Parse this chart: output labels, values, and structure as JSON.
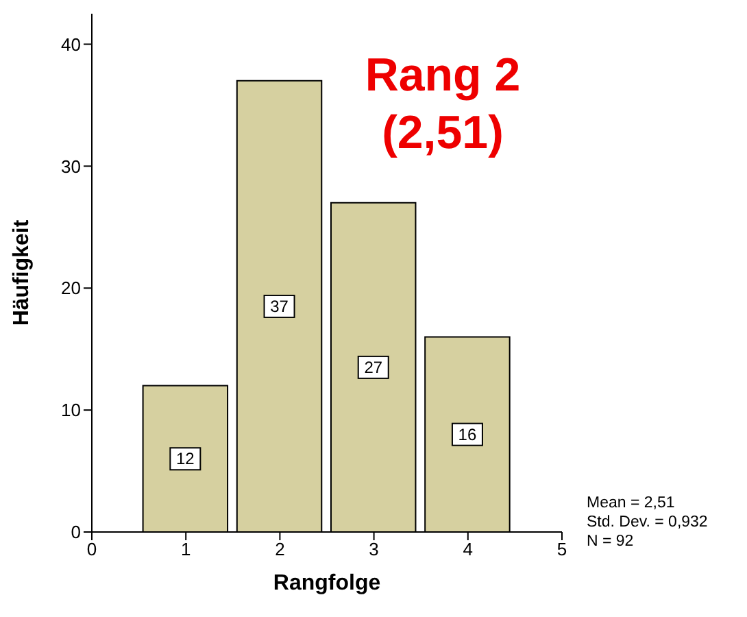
{
  "chart_data": {
    "type": "histogram",
    "xlabel": "Rangfolge",
    "ylabel": "Häufigkeit",
    "bins": [
      0.5,
      1.5,
      2.5,
      3.5,
      4.5
    ],
    "values": [
      12,
      37,
      27,
      16
    ],
    "color": "#d6d0a0",
    "xlim": [
      0,
      5
    ],
    "xticks": [
      0,
      1,
      2,
      3,
      4,
      5
    ],
    "ylim": [
      0,
      42.5
    ],
    "yticks": [
      0,
      10,
      20,
      30,
      40
    ],
    "data_labels": true,
    "grid": false,
    "legend": false,
    "annotations": [
      "Rang 2 (2,51)",
      "Mean = 2,51",
      "Std. Dev. = 0,932",
      "N = 92"
    ]
  }
}
